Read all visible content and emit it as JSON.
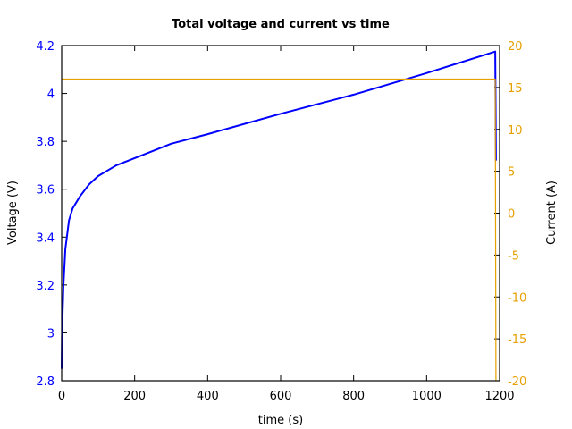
{
  "chart_data": {
    "type": "line",
    "title": "Total voltage and current vs time",
    "xlabel": "time (s)",
    "ylabel": "Voltage (V)",
    "y2label": "Current (A)",
    "xlim": [
      0,
      1200
    ],
    "ylim": [
      2.8,
      4.2
    ],
    "y2lim": [
      -20,
      20
    ],
    "xticks": [
      "0",
      "200",
      "400",
      "600",
      "800",
      "1000",
      "1200"
    ],
    "yticks": [
      "2.8",
      "3",
      "3.2",
      "3.4",
      "3.6",
      "3.8",
      "4",
      "4.2"
    ],
    "y2ticks": [
      "-20",
      "-15",
      "-10",
      "-5",
      "0",
      "5",
      "10",
      "15",
      "20"
    ],
    "grid": false,
    "colors": {
      "voltage": "#0000ff",
      "current": "#e6a000",
      "axis": "#000000"
    },
    "series": [
      {
        "name": "Voltage",
        "axis": "left",
        "x": [
          0,
          1,
          2,
          5,
          10,
          20,
          30,
          50,
          75,
          100,
          150,
          200,
          300,
          400,
          600,
          800,
          1000,
          1188,
          1190
        ],
        "y": [
          2.85,
          2.98,
          3.05,
          3.2,
          3.35,
          3.47,
          3.52,
          3.57,
          3.62,
          3.655,
          3.7,
          3.73,
          3.79,
          3.83,
          3.915,
          3.995,
          4.085,
          4.175,
          3.72
        ]
      },
      {
        "name": "Current",
        "axis": "right",
        "x": [
          0,
          1188,
          1190
        ],
        "y": [
          16,
          16,
          -20
        ]
      }
    ]
  }
}
